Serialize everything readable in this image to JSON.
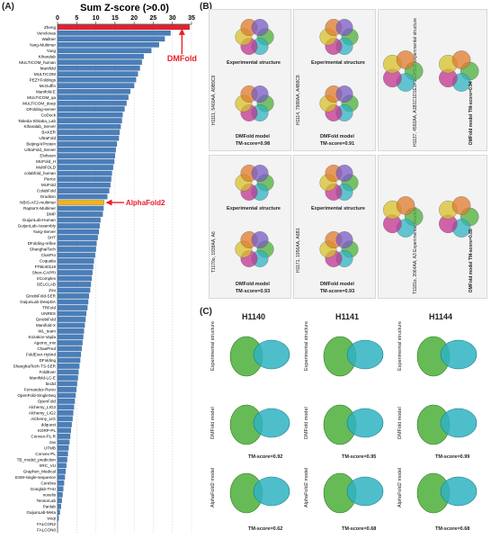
{
  "panels": {
    "a": "(A)",
    "b": "(B)",
    "c": "(C)"
  },
  "chart_data": {
    "type": "bar",
    "title": "Sum Z-score (>0.0)",
    "xlim": [
      0,
      35
    ],
    "ticks": [
      "0",
      "5",
      "10",
      "15",
      "20",
      "25",
      "30",
      "35"
    ],
    "grid": true,
    "categories": [
      "Zheng",
      "Venclovas",
      "Wallner",
      "Yang-Multimer",
      "Yang",
      "Kiharalab",
      "MULTICOM_human",
      "Manifold",
      "MULTICOM",
      "PEZYFoldings",
      "McGuffin",
      "Manifold-E",
      "MULTICOM_qa",
      "MULTICOM_deep",
      "DFolding-server",
      "CoDock",
      "Takeda-Shitaka_Lab",
      "Kiharalab_Server",
      "BAKER",
      "UltraFold",
      "BeijingAIProtein",
      "UltraFold_Server",
      "Elofsson",
      "MUFold_H",
      "MultiFOLD",
      "colabfold_human",
      "Pierce",
      "MUFold",
      "ColabFold",
      "Grudinin",
      "NBIS-AF2-multimer",
      "RaptorX-Multimer",
      "DMP",
      "GuijunLab-Human",
      "GuijunLab-Assembly",
      "Yang-Server",
      "SHT",
      "DFolding-refine",
      "ShanghaiTech",
      "ClusPro",
      "Coqualia",
      "FTBiot0119",
      "Shen-CAPRI",
      "trComplex",
      "DELCLAB",
      "Zou",
      "GinobiFold-SER",
      "GuijunLab-DeepDA",
      "TRFold",
      "UNRES",
      "GinobiFold",
      "Manifold-X",
      "WL_team",
      "Kozakov-Vajda",
      "Agemo_mix",
      "ChaePred",
      "FoldEver-Hybrid",
      "DFolding",
      "ShanghaiTech-TS-SER",
      "FoldEver",
      "Manifold-LC-E",
      "bio3d",
      "Fernandez-Recio",
      "OpenFold-SingleSeq",
      "OpenFold",
      "Alchemy_LIG3",
      "Alchemy_LIG2",
      "Alchemy_LIG",
      "ddquest",
      "KORP-PL",
      "Convex-PL-R",
      "zax",
      "UTMB",
      "Convex-PL",
      "TB_model_prediction",
      "XRC_VU",
      "Graphen_Medical",
      "ESM-single-sequence",
      "Cerebra",
      "Gonglab-THU",
      "noxelis",
      "TensorLab",
      "Panlab",
      "GuijunLab-Meta",
      "wuqi",
      "FALCON2",
      "FALCON0"
    ],
    "values": [
      34.5,
      29.5,
      28.0,
      26.5,
      24.5,
      22.5,
      22.0,
      21.5,
      21.0,
      20.5,
      20.0,
      19.0,
      18.5,
      18.0,
      17.5,
      17.0,
      16.8,
      16.5,
      16.2,
      16.0,
      15.5,
      15.2,
      15.0,
      14.8,
      14.5,
      14.2,
      14.0,
      13.8,
      13.5,
      13.0,
      12.2,
      12.0,
      11.8,
      11.2,
      11.0,
      10.8,
      10.5,
      10.2,
      10.0,
      9.8,
      9.5,
      9.3,
      9.1,
      8.9,
      8.7,
      8.5,
      8.2,
      8.0,
      7.8,
      7.5,
      7.3,
      7.1,
      6.9,
      6.7,
      6.5,
      6.3,
      6.1,
      5.9,
      5.7,
      5.5,
      5.3,
      5.1,
      4.9,
      4.7,
      4.5,
      4.3,
      4.1,
      3.9,
      3.7,
      3.5,
      3.3,
      3.1,
      2.9,
      2.7,
      2.5,
      2.3,
      2.1,
      1.9,
      1.7,
      1.5,
      1.3,
      1.1,
      0.9,
      0.6,
      0.3,
      0.0,
      0.0
    ],
    "highlight": {
      "Zheng": "#e8202a",
      "NBIS-AF2-multimer": "#f4b21a"
    },
    "bar_color": "#4a7eba",
    "annotations": [
      {
        "label": "DMFold",
        "target": "Zheng",
        "color": "#e8202a"
      },
      {
        "label": "AlphaFold2",
        "target": "NBIS-AF2-multimer",
        "color": "#e8202a"
      }
    ]
  },
  "panel_b": {
    "cells": [
      {
        "target": "H1111, 5460AA, A9B9C9",
        "exp": "Experimental structure",
        "model": "DMFold model",
        "tm": "TM-score=0.98"
      },
      {
        "target": "H1114, 7988AA, A4B8C8",
        "exp": "Experimental structure",
        "model": "DMFold model",
        "tm": "TM-score=0.91"
      },
      {
        "target": "H1137, 4592AA, A1B1C1D1E1F1G2H1I1",
        "exp": "Experimental structure",
        "model": "DMFold model",
        "tm": "TM-score=0.94"
      },
      {
        "target": "T1170o, 1938AA, A6",
        "exp": "Experimental structure",
        "model": "DMFold model",
        "tm": "TM-score=0.93"
      },
      {
        "target": "H1171, 1956AA, A6B1",
        "exp": "Experimental structure",
        "model": "DMFold model",
        "tm": "TM-score=0.93"
      },
      {
        "target": "T1181o, 2064AA, A3",
        "exp": "Experimental structure",
        "model": "DMFold model",
        "tm": "TM-score=0.85"
      }
    ]
  },
  "panel_c": {
    "columns": [
      {
        "title": "H1140",
        "dmfold_tm": "TM-score=0.92",
        "af2_tm": "TM-score=0.62"
      },
      {
        "title": "H1141",
        "dmfold_tm": "TM-score=0.95",
        "af2_tm": "TM-score=0.68"
      },
      {
        "title": "H1144",
        "dmfold_tm": "TM-score=0.99",
        "af2_tm": "TM-score=0.68"
      }
    ],
    "rows": [
      "Experimental structure",
      "DMFold model",
      "AlphaFold2 model"
    ]
  },
  "colors": {
    "green": "#4caf3a",
    "cyan": "#2fb3c2",
    "magenta": "#c2338f",
    "yellow": "#d8c22a"
  }
}
